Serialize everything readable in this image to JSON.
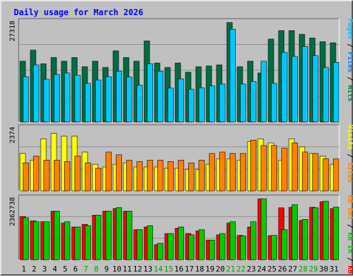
{
  "chart_data": {
    "type": "bar",
    "title": "Daily usage for March 2026",
    "categories": [
      "1",
      "2",
      "3",
      "4",
      "5",
      "6",
      "7",
      "8",
      "9",
      "10",
      "11",
      "12",
      "13",
      "14",
      "15",
      "16",
      "17",
      "18",
      "19",
      "20",
      "21",
      "22",
      "23",
      "24",
      "25",
      "26",
      "27",
      "28",
      "29",
      "30",
      "31"
    ],
    "weekend_days": [
      "7",
      "8",
      "14",
      "15",
      "21",
      "22",
      "28",
      "29"
    ],
    "panels": [
      {
        "name": "hits",
        "ymax_label": "27318",
        "ylim": [
          0,
          27318
        ],
        "series": [
          {
            "name": "Hits",
            "color": "#008040",
            "values": [
              16500,
              19500,
              15800,
              17500,
              16500,
              17500,
              15000,
              16500,
              14800,
              19300,
              17500,
              16500,
              22000,
              16000,
              14800,
              16000,
              13500,
              15000,
              15200,
              15500,
              27000,
              15000,
              16500,
              13300,
              22500,
              24800,
              24800,
              23800,
              22800,
              21800,
              21500
            ]
          },
          {
            "name": "Files",
            "color": "#00c0ff",
            "values": [
              12300,
              15500,
              11600,
              12900,
              13300,
              12700,
              10500,
              11400,
              12300,
              13800,
              12200,
              10000,
              15800,
              13800,
              9200,
              11700,
              8900,
              9300,
              9800,
              10300,
              25200,
              10300,
              11000,
              16500,
              10500,
              18900,
              17800,
              20500,
              18000,
              14800,
              16200
            ]
          },
          {
            "name": "Pages",
            "color": "#00e0ff",
            "values": []
          }
        ]
      },
      {
        "name": "sites",
        "ymax_label": "2374",
        "ylim": [
          0,
          2374
        ],
        "series": [
          {
            "name": "Visits",
            "color": "#ffff00",
            "values": [
              1400,
              1150,
              1950,
              2150,
              2050,
              2050,
              1450,
              1000,
              900,
              1000,
              1050,
              900,
              900,
              900,
              850,
              850,
              800,
              800,
              1000,
              1200,
              1200,
              1150,
              1850,
              1950,
              1800,
              1150,
              1950,
              1650,
              1400,
              1300,
              1000
            ]
          },
          {
            "name": "Sites",
            "color": "#ff8000",
            "values": [
              1050,
              1300,
              1150,
              1150,
              1100,
              1300,
              1050,
              850,
              1450,
              1350,
              1150,
              1100,
              1150,
              1150,
              1100,
              1150,
              1050,
              1150,
              1400,
              1450,
              1400,
              1400,
              1900,
              1700,
              1700,
              1600,
              1800,
              1450,
              1400,
              1200,
              1200
            ]
          }
        ]
      },
      {
        "name": "kbytes",
        "ymax_label": "2362738",
        "ylim": [
          0,
          2362738
        ],
        "series": [
          {
            "name": "KB F",
            "color": "#ff0000",
            "values": [
              1650000,
              1480000,
              1450000,
              1850000,
              1400000,
              1250000,
              1350000,
              1700000,
              1850000,
              1950000,
              1850000,
              1150000,
              1250000,
              580000,
              1000000,
              1200000,
              1000000,
              1100000,
              750000,
              950000,
              1400000,
              930000,
              1250000,
              2320000,
              920000,
              1980000,
              2000000,
              1500000,
              2000000,
              2210000,
              1950000
            ]
          },
          {
            "name": "KB In",
            "color": "#00e000",
            "values": [
              1600000,
              1450000,
              1450000,
              1850000,
              1450000,
              1250000,
              1300000,
              1700000,
              1850000,
              1990000,
              1850000,
              1150000,
              1300000,
              630000,
              1000000,
              1250000,
              950000,
              1150000,
              750000,
              1000000,
              1450000,
              910000,
              1450000,
              2320000,
              930000,
              1150000,
              2100000,
              1540000,
              1980000,
              2230000,
              2010000
            ]
          },
          {
            "name": "KB Out",
            "color": "#00c000",
            "values": []
          }
        ]
      }
    ],
    "side_labels": [
      {
        "text": "Pages",
        "color": "#00c0ff"
      },
      {
        "text": "Files",
        "color": "#0080ff"
      },
      {
        "text": "Hits",
        "color": "#008040"
      },
      {
        "text": "Visits",
        "color": "#ffff00"
      },
      {
        "text": "Sites",
        "color": "#ff8000"
      },
      {
        "text": "KB Out",
        "color": "#ff8000"
      },
      {
        "text": "KB In",
        "color": "#00c000"
      },
      {
        "text": "KB F",
        "color": "#ff0000"
      }
    ],
    "xlabel": "",
    "ylabel": "",
    "grid": true,
    "colors": {
      "background": "#c0c0c0",
      "title": "#0000ff",
      "weekday_label": "#000000",
      "weekend_label": "#00a000",
      "grid": "#909090",
      "slash": "#000000"
    }
  }
}
